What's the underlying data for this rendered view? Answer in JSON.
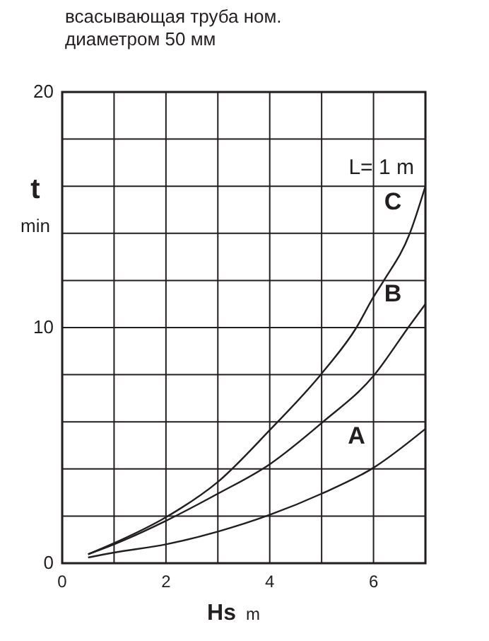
{
  "chart_data": {
    "type": "line",
    "title": [
      "всасывающая труба ном.",
      "диаметром 50 мм"
    ],
    "xlabel": "Hs m",
    "ylabel": "t min",
    "annotations": [
      "L= 1 m"
    ],
    "xlim": [
      0,
      7
    ],
    "ylim": [
      0,
      20
    ],
    "xticks": [
      0,
      {
        "value": 1,
        "label": null
      },
      2,
      {
        "value": 3,
        "label": null
      },
      4,
      {
        "value": 5,
        "label": null
      },
      6,
      {
        "value": 7,
        "label": null
      }
    ],
    "yticks": [
      0,
      {
        "value": 2,
        "label": null
      },
      {
        "value": 4,
        "label": null
      },
      {
        "value": 6,
        "label": null
      },
      {
        "value": 8,
        "label": null
      },
      10,
      {
        "value": 12,
        "label": null
      },
      {
        "value": 14,
        "label": null
      },
      {
        "value": 16,
        "label": null
      },
      {
        "value": 18,
        "label": null
      },
      20
    ],
    "grid": true,
    "legend": false,
    "marker": "none",
    "line_style": "solid",
    "series": [
      {
        "name": "A",
        "color": "#231f20",
        "x": [
          0.5,
          1,
          2,
          3,
          4,
          5,
          6,
          7
        ],
        "values": [
          0.24,
          0.45,
          0.8,
          1.34,
          2.05,
          2.95,
          4.05,
          5.7
        ]
      },
      {
        "name": "B",
        "color": "#231f20",
        "x": [
          0.5,
          1,
          2,
          3,
          4,
          5,
          6,
          6.7,
          7
        ],
        "values": [
          0.38,
          0.8,
          1.8,
          2.95,
          4.2,
          5.95,
          7.95,
          10.1,
          11.0
        ]
      },
      {
        "name": "C",
        "color": "#231f20",
        "x": [
          0.5,
          1,
          2,
          3,
          4,
          5,
          5.67,
          6,
          6.2,
          6.7,
          7
        ],
        "values": [
          0.38,
          0.85,
          1.95,
          3.45,
          5.65,
          8.05,
          10.0,
          11.3,
          12.0,
          14.0,
          16.0
        ]
      }
    ]
  }
}
